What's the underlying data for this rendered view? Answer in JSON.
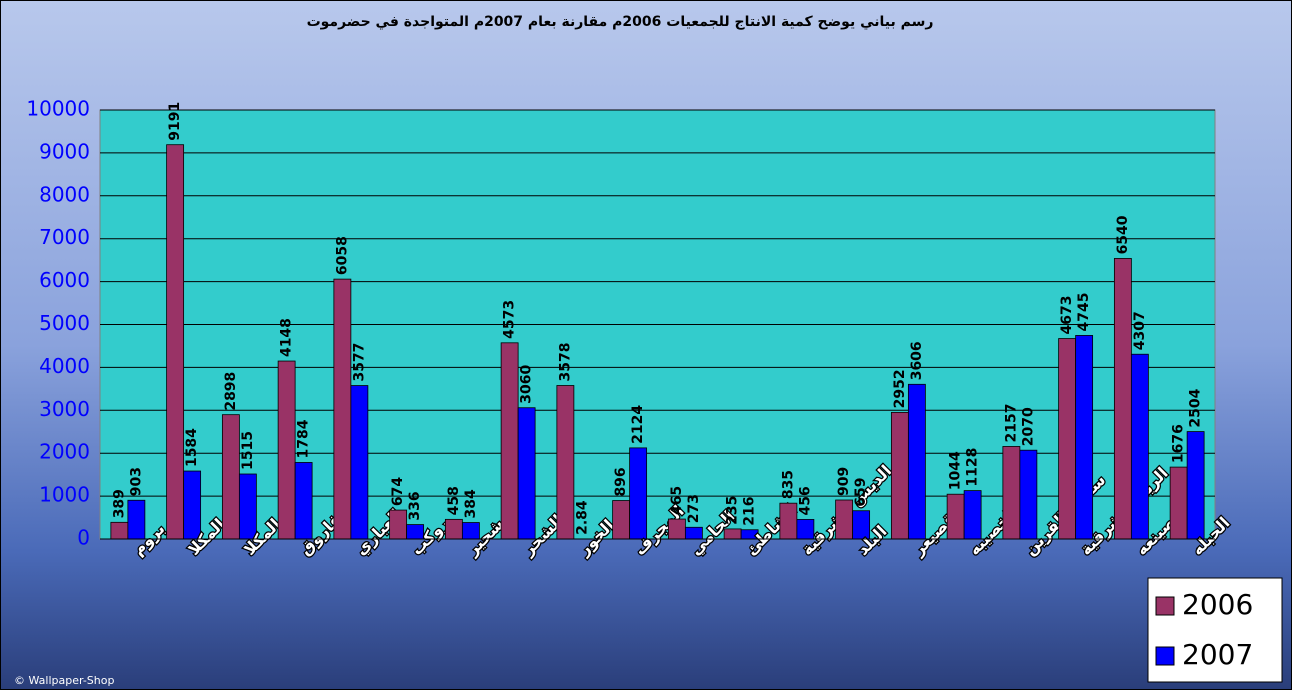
{
  "chart_data": {
    "type": "bar",
    "title": "رسم بياني يوضح كمية الانتاج للجمعيات 2006م مقارنة بعام 2007م المتواجدة في حضرموت",
    "categories": [
      "بروم",
      "م/ المكلا",
      "المكلا",
      "الفاروق",
      "العباري",
      "روكب",
      "شحير",
      "الشحر",
      "الخور",
      "المجرف",
      "الحامي",
      "الشاطئ",
      "الديس الشرقية",
      "البلد",
      "قصيعر",
      "الخصيبه",
      "ساحل القرين",
      "الريده الشرقية",
      "المصينعه",
      "الحبله"
    ],
    "series": [
      {
        "name": "2006",
        "color": "#993366",
        "values": [
          389,
          9191,
          2898,
          4148,
          6058,
          674,
          458,
          4573,
          3578,
          896,
          465,
          235,
          835,
          909,
          2952,
          1044,
          2157,
          4673,
          6540,
          1676
        ]
      },
      {
        "name": "2007",
        "color": "#0000ff",
        "values": [
          903,
          1584,
          1515,
          1784,
          3577,
          336,
          384,
          3060,
          2.84,
          2124,
          273,
          216,
          456,
          659,
          3606,
          1128,
          2070,
          4745,
          4307,
          2504
        ]
      }
    ],
    "ylim": [
      0,
      10000
    ],
    "yticks": [
      0,
      1000,
      2000,
      3000,
      4000,
      5000,
      6000,
      7000,
      8000,
      9000,
      10000
    ],
    "grid": true,
    "legend": "bottom-right",
    "plot_color": "#33cccc",
    "watermark": "© Wallpaper-Shop"
  }
}
